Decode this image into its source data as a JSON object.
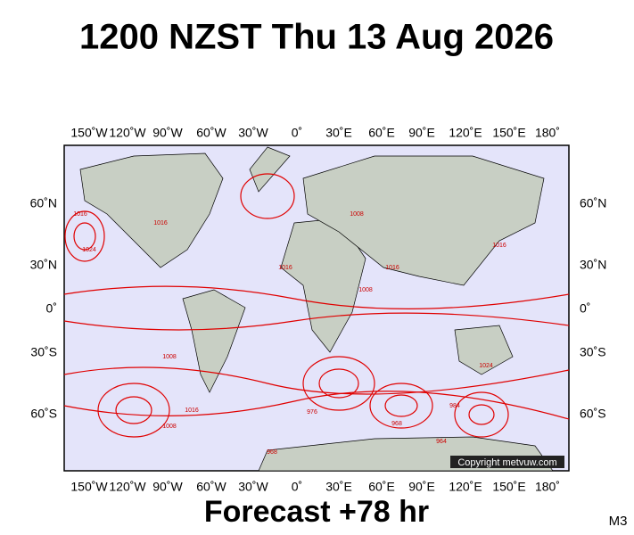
{
  "header": {
    "title": "1200 NZST Thu 13 Aug 2026"
  },
  "map": {
    "lon_labels": [
      "150˚W",
      "120˚W",
      "90˚W",
      "60˚W",
      "30˚W",
      "0˚",
      "30˚E",
      "60˚E",
      "90˚E",
      "120˚E",
      "150˚E",
      "180˚"
    ],
    "lat_labels": [
      "60˚N",
      "30˚N",
      "0˚",
      "30˚S",
      "60˚S"
    ],
    "isobar_labels": [
      "1016",
      "1024",
      "1016",
      "1008",
      "1016",
      "1008",
      "1016",
      "1008",
      "1016",
      "1024",
      "984",
      "968",
      "976",
      "1008",
      "1016",
      "964",
      "968"
    ],
    "copyright": "Copyright metvuw.com"
  },
  "footer": {
    "forecast": "Forecast +78 hr",
    "model": "M3"
  }
}
